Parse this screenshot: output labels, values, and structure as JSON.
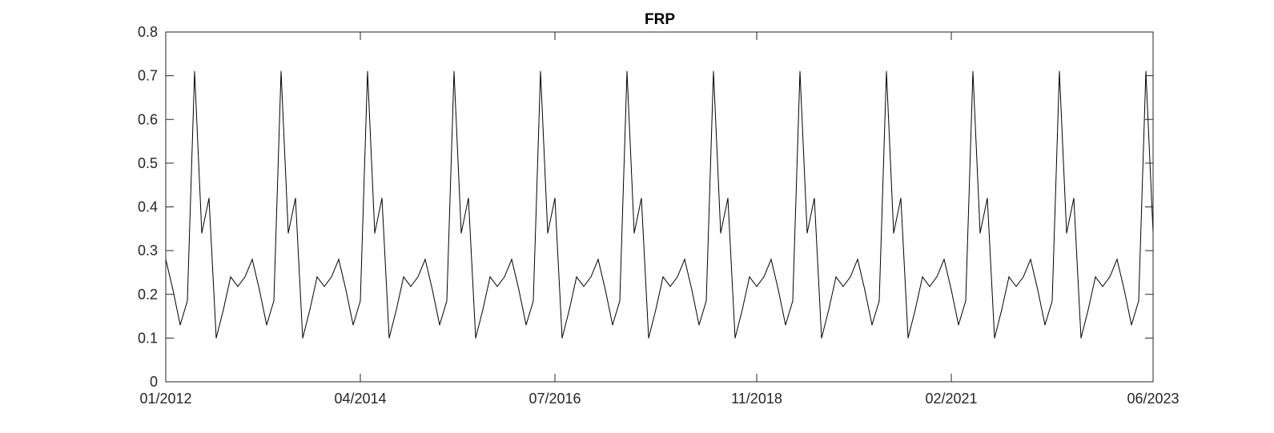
{
  "chart_data": {
    "type": "line",
    "title": "FRP",
    "xlabel": "",
    "ylabel": "",
    "x_start": "01/2012",
    "x_end": "06/2023",
    "x_frequency": "monthly",
    "xlim": [
      "01/2012",
      "06/2023"
    ],
    "ylim": [
      0,
      0.8
    ],
    "grid": false,
    "legend": "none",
    "xticks": [
      "01/2012",
      "04/2014",
      "07/2016",
      "11/2018",
      "02/2021",
      "06/2023"
    ],
    "yticks": [
      "0",
      "0.1",
      "0.2",
      "0.3",
      "0.4",
      "0.5",
      "0.6",
      "0.7",
      "0.8"
    ],
    "series": [
      {
        "color": "#000000",
        "monthly_pattern": {
          "Jan": 0.28,
          "Feb": 0.21,
          "Mar": 0.13,
          "Apr": 0.185,
          "May": 0.71,
          "Jun": 0.34,
          "Jul": 0.42,
          "Aug": 0.1,
          "Sep": 0.165,
          "Oct": 0.24,
          "Nov": 0.218,
          "Dec": 0.24
        },
        "values": [
          0.28,
          0.21,
          0.13,
          0.185,
          0.71,
          0.34,
          0.42,
          0.1,
          0.165,
          0.24,
          0.218,
          0.24,
          0.28,
          0.21,
          0.13,
          0.185,
          0.71,
          0.34,
          0.42,
          0.1,
          0.165,
          0.24,
          0.218,
          0.24,
          0.28,
          0.21,
          0.13,
          0.185,
          0.71,
          0.34,
          0.42,
          0.1,
          0.165,
          0.24,
          0.218,
          0.24,
          0.28,
          0.21,
          0.13,
          0.185,
          0.71,
          0.34,
          0.42,
          0.1,
          0.165,
          0.24,
          0.218,
          0.24,
          0.28,
          0.21,
          0.13,
          0.185,
          0.71,
          0.34,
          0.42,
          0.1,
          0.165,
          0.24,
          0.218,
          0.24,
          0.28,
          0.21,
          0.13,
          0.185,
          0.71,
          0.34,
          0.42,
          0.1,
          0.165,
          0.24,
          0.218,
          0.24,
          0.28,
          0.21,
          0.13,
          0.185,
          0.71,
          0.34,
          0.42,
          0.1,
          0.165,
          0.24,
          0.218,
          0.24,
          0.28,
          0.21,
          0.13,
          0.185,
          0.71,
          0.34,
          0.42,
          0.1,
          0.165,
          0.24,
          0.218,
          0.24,
          0.28,
          0.21,
          0.13,
          0.185,
          0.71,
          0.34,
          0.42,
          0.1,
          0.165,
          0.24,
          0.218,
          0.24,
          0.28,
          0.21,
          0.13,
          0.185,
          0.71,
          0.34,
          0.42,
          0.1,
          0.165,
          0.24,
          0.218,
          0.24,
          0.28,
          0.21,
          0.13,
          0.185,
          0.71,
          0.34,
          0.42,
          0.1,
          0.165,
          0.24,
          0.218,
          0.24,
          0.28,
          0.21,
          0.13,
          0.185,
          0.71,
          0.34
        ]
      }
    ]
  }
}
